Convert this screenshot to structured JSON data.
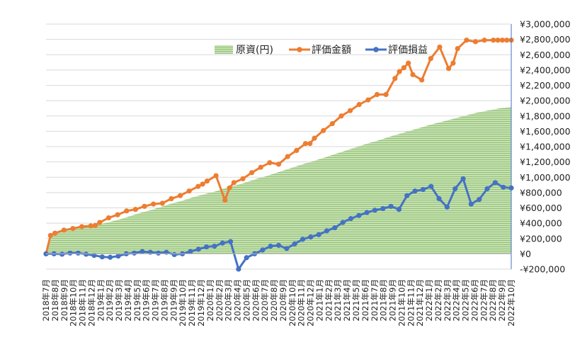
{
  "chart_data": {
    "type": "line",
    "legend_position": "top-center",
    "grid": true,
    "ylim": [
      -200000,
      3000000
    ],
    "y_ticks": [
      -200000,
      0,
      200000,
      400000,
      600000,
      800000,
      1000000,
      1200000,
      1400000,
      1600000,
      1800000,
      2000000,
      2200000,
      2400000,
      2600000,
      2800000,
      3000000
    ],
    "y_tick_labels": [
      "-¥200,000",
      "¥0",
      "¥200,000",
      "¥400,000",
      "¥600,000",
      "¥800,000",
      "¥1,000,000",
      "¥1,200,000",
      "¥1,400,000",
      "¥1,600,000",
      "¥1,800,000",
      "¥2,000,000",
      "¥2,200,000",
      "¥2,400,000",
      "¥2,600,000",
      "¥2,800,000",
      "¥3,000,000"
    ],
    "x_tick_labels": [
      "2018年7月",
      "2018年8月",
      "2018年9月",
      "2018年10月",
      "2018年11月",
      "2018年12月",
      "2019年1月",
      "2019年2月",
      "2019年3月",
      "2019年4月",
      "2019年5月",
      "2019年6月",
      "2019年7月",
      "2019年8月",
      "2019年9月",
      "2019年10月",
      "2019年11月",
      "2019年12月",
      "2020年1月",
      "2020年2月",
      "2020年3月",
      "2020年4月",
      "2020年5月",
      "2020年6月",
      "2020年7月",
      "2020年8月",
      "2020年9月",
      "2020年10月",
      "2020年11月",
      "2020年12月",
      "2021年1月",
      "2021年2月",
      "2021年3月",
      "2021年4月",
      "2021年5月",
      "2021年6月",
      "2021年7月",
      "2021年8月",
      "2021年9月",
      "2021年10月",
      "2021年11月",
      "2021年12月",
      "2022年1月",
      "2022年2月",
      "2022年3月",
      "2022年4月",
      "2022年5月",
      "2022年6月",
      "2022年7月",
      "2022年8月",
      "2022年9月",
      "2022年10月"
    ],
    "point_count": 80,
    "series": [
      {
        "name": "原資(円)",
        "kind": "area",
        "color": "#a9d18e",
        "values": [
          0,
          240000,
          280000,
          300000,
          320000,
          335000,
          350000,
          360000,
          370000,
          380000,
          400000,
          420000,
          440000,
          460000,
          485000,
          510000,
          535000,
          555000,
          575000,
          600000,
          625000,
          650000,
          670000,
          690000,
          715000,
          740000,
          760000,
          780000,
          800000,
          820000,
          850000,
          870000,
          890000,
          910000,
          935000,
          960000,
          985000,
          1005000,
          1030000,
          1055000,
          1080000,
          1105000,
          1130000,
          1155000,
          1180000,
          1200000,
          1225000,
          1250000,
          1275000,
          1300000,
          1325000,
          1350000,
          1375000,
          1400000,
          1425000,
          1450000,
          1470000,
          1495000,
          1520000,
          1545000,
          1565000,
          1590000,
          1610000,
          1635000,
          1655000,
          1680000,
          1700000,
          1720000,
          1740000,
          1760000,
          1780000,
          1800000,
          1820000,
          1840000,
          1855000,
          1870000,
          1885000,
          1900000,
          1910000,
          1920000
        ]
      },
      {
        "name": "評価金額",
        "kind": "line",
        "color": "#ed7d31",
        "x_index": [
          0,
          1,
          2,
          4,
          6,
          8,
          10,
          11,
          12,
          14,
          16,
          18,
          20,
          22,
          24,
          26,
          28,
          30,
          32,
          34,
          35,
          36,
          38,
          40,
          41,
          42,
          44,
          46,
          48,
          50,
          52,
          54,
          56,
          58,
          59,
          60,
          62,
          64,
          66,
          68,
          70,
          72,
          74,
          76,
          78,
          79,
          80,
          81,
          82,
          84,
          86,
          88,
          90,
          91,
          92,
          94,
          96,
          98,
          100,
          101,
          102,
          103,
          104
        ],
        "values": [
          0,
          240000,
          270000,
          310000,
          330000,
          355000,
          365000,
          370000,
          410000,
          470000,
          510000,
          560000,
          580000,
          620000,
          650000,
          660000,
          720000,
          760000,
          820000,
          880000,
          910000,
          950000,
          1020000,
          700000,
          860000,
          930000,
          980000,
          1060000,
          1130000,
          1190000,
          1170000,
          1270000,
          1350000,
          1440000,
          1440000,
          1510000,
          1610000,
          1700000,
          1800000,
          1870000,
          1950000,
          2010000,
          2080000,
          2080000,
          2290000,
          2380000,
          2430000,
          2490000,
          2340000,
          2270000,
          2550000,
          2700000,
          2420000,
          2490000,
          2680000,
          2790000,
          2770000,
          2790000,
          2790000,
          2790000,
          2790000,
          2790000,
          2790000
        ]
      },
      {
        "name": "評価損益",
        "kind": "line",
        "color": "#4472c4",
        "values": [
          0,
          0,
          -5000,
          10000,
          10000,
          -5000,
          -20000,
          -40000,
          -45000,
          -30000,
          0,
          10000,
          30000,
          20000,
          10000,
          20000,
          -10000,
          0,
          30000,
          60000,
          90000,
          100000,
          140000,
          160000,
          -200000,
          -50000,
          0,
          50000,
          100000,
          110000,
          70000,
          130000,
          190000,
          220000,
          250000,
          300000,
          340000,
          410000,
          460000,
          500000,
          540000,
          570000,
          590000,
          620000,
          580000,
          760000,
          820000,
          840000,
          880000,
          720000,
          610000,
          850000,
          980000,
          650000,
          710000,
          850000,
          930000,
          870000,
          860000
        ]
      }
    ]
  }
}
